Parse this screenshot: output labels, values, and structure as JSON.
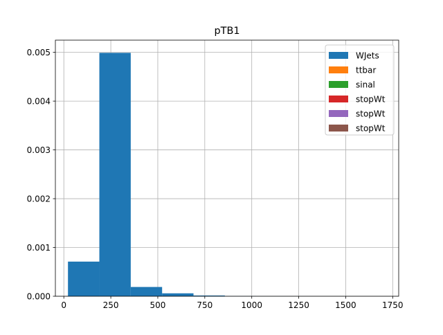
{
  "chart_data": {
    "type": "bar",
    "title": "pTB1",
    "xlabel": "",
    "ylabel": "",
    "xlim": [
      -45,
      1782
    ],
    "ylim": [
      0,
      0.00525
    ],
    "xticks": [
      0,
      250,
      500,
      750,
      1000,
      1250,
      1500,
      1750
    ],
    "yticks": [
      0.0,
      0.001,
      0.002,
      0.003,
      0.004,
      0.005
    ],
    "xtick_labels": [
      "0",
      "250",
      "500",
      "750",
      "1000",
      "1250",
      "1500",
      "1750"
    ],
    "ytick_labels": [
      "0.000",
      "0.001",
      "0.002",
      "0.003",
      "0.004",
      "0.005"
    ],
    "grid": true,
    "legend_position": "top-right",
    "series": [
      {
        "name": "WJets",
        "color": "#1f77b4",
        "bins": [
          {
            "x0": 22,
            "x1": 189,
            "value": 0.00071
          },
          {
            "x0": 189,
            "x1": 356,
            "value": 0.00499
          },
          {
            "x0": 356,
            "x1": 523,
            "value": 0.00019
          },
          {
            "x0": 523,
            "x1": 690,
            "value": 6e-05
          },
          {
            "x0": 690,
            "x1": 857,
            "value": 1.5e-05
          },
          {
            "x0": 857,
            "x1": 1024,
            "value": 3e-06
          },
          {
            "x0": 1024,
            "x1": 1191,
            "value": 1e-06
          },
          {
            "x0": 1191,
            "x1": 1358,
            "value": 5e-07
          },
          {
            "x0": 1358,
            "x1": 1525,
            "value": 3e-07
          },
          {
            "x0": 1525,
            "x1": 1692,
            "value": 2e-07
          }
        ]
      },
      {
        "name": "ttbar",
        "color": "#ff7f0e",
        "bins": []
      },
      {
        "name": "sinal",
        "color": "#2ca02c",
        "bins": []
      },
      {
        "name": "stopWt",
        "color": "#d62728",
        "bins": []
      },
      {
        "name": "stopWt",
        "color": "#9467bd",
        "bins": []
      },
      {
        "name": "stopWt",
        "color": "#8c564b",
        "bins": []
      }
    ]
  }
}
